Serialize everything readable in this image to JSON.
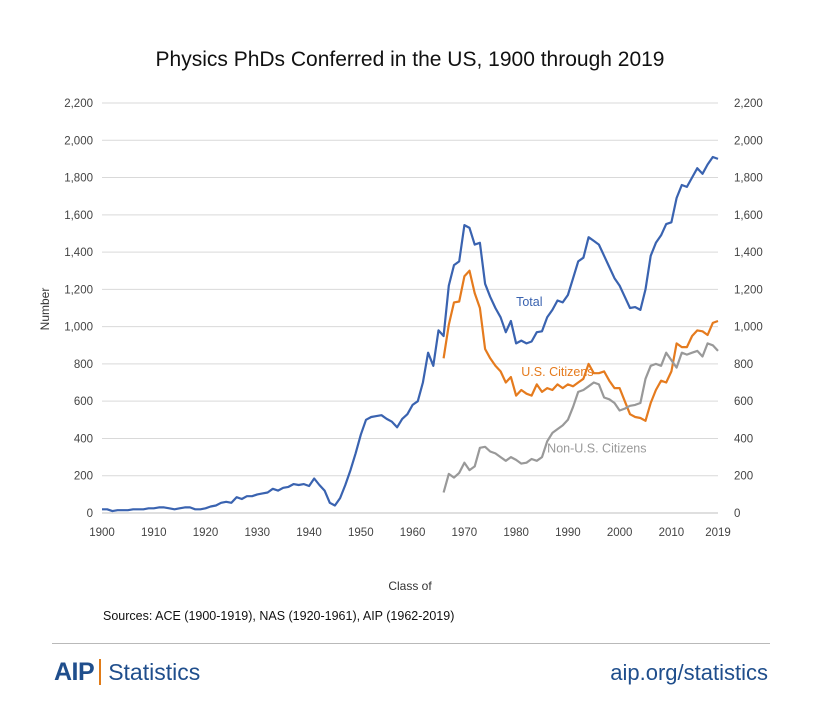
{
  "chart_data": {
    "type": "line",
    "title": "Physics PhDs Conferred in the US, 1900 through 2019",
    "xlabel": "Class of",
    "ylabel": "Number",
    "xlim": [
      1900,
      2019
    ],
    "ylim": [
      0,
      2200
    ],
    "x_ticks": [
      "1900",
      "1910",
      "1920",
      "1930",
      "1940",
      "1950",
      "1960",
      "1970",
      "1980",
      "1990",
      "2000",
      "2010",
      "2019"
    ],
    "y_ticks": [
      "0",
      "200",
      "400",
      "600",
      "800",
      "1,000",
      "1,200",
      "1,400",
      "1,600",
      "1,800",
      "2,000",
      "2,200"
    ],
    "grid": true,
    "series": [
      {
        "name": "Total",
        "color": "#3a63b0",
        "points": [
          [
            1900,
            20
          ],
          [
            1901,
            20
          ],
          [
            1902,
            10
          ],
          [
            1903,
            15
          ],
          [
            1904,
            15
          ],
          [
            1905,
            15
          ],
          [
            1906,
            20
          ],
          [
            1907,
            20
          ],
          [
            1908,
            20
          ],
          [
            1909,
            25
          ],
          [
            1910,
            25
          ],
          [
            1911,
            30
          ],
          [
            1912,
            30
          ],
          [
            1913,
            25
          ],
          [
            1914,
            20
          ],
          [
            1915,
            25
          ],
          [
            1916,
            30
          ],
          [
            1917,
            30
          ],
          [
            1918,
            20
          ],
          [
            1919,
            20
          ],
          [
            1920,
            25
          ],
          [
            1921,
            35
          ],
          [
            1922,
            40
          ],
          [
            1923,
            55
          ],
          [
            1924,
            60
          ],
          [
            1925,
            55
          ],
          [
            1926,
            85
          ],
          [
            1927,
            75
          ],
          [
            1928,
            90
          ],
          [
            1929,
            90
          ],
          [
            1930,
            100
          ],
          [
            1931,
            105
          ],
          [
            1932,
            110
          ],
          [
            1933,
            130
          ],
          [
            1934,
            120
          ],
          [
            1935,
            135
          ],
          [
            1936,
            140
          ],
          [
            1937,
            155
          ],
          [
            1938,
            150
          ],
          [
            1939,
            155
          ],
          [
            1940,
            145
          ],
          [
            1941,
            185
          ],
          [
            1942,
            150
          ],
          [
            1943,
            120
          ],
          [
            1944,
            55
          ],
          [
            1945,
            40
          ],
          [
            1946,
            80
          ],
          [
            1947,
            150
          ],
          [
            1948,
            230
          ],
          [
            1949,
            320
          ],
          [
            1950,
            420
          ],
          [
            1951,
            500
          ],
          [
            1952,
            515
          ],
          [
            1953,
            520
          ],
          [
            1954,
            525
          ],
          [
            1955,
            505
          ],
          [
            1956,
            490
          ],
          [
            1957,
            460
          ],
          [
            1958,
            505
          ],
          [
            1959,
            530
          ],
          [
            1960,
            580
          ],
          [
            1961,
            600
          ],
          [
            1962,
            700
          ],
          [
            1963,
            860
          ],
          [
            1964,
            790
          ],
          [
            1965,
            980
          ],
          [
            1966,
            950
          ],
          [
            1967,
            1220
          ],
          [
            1968,
            1330
          ],
          [
            1969,
            1350
          ],
          [
            1970,
            1545
          ],
          [
            1971,
            1530
          ],
          [
            1972,
            1440
          ],
          [
            1973,
            1450
          ],
          [
            1974,
            1230
          ],
          [
            1975,
            1160
          ],
          [
            1976,
            1100
          ],
          [
            1977,
            1050
          ],
          [
            1978,
            970
          ],
          [
            1979,
            1030
          ],
          [
            1980,
            910
          ],
          [
            1981,
            925
          ],
          [
            1982,
            910
          ],
          [
            1983,
            920
          ],
          [
            1984,
            970
          ],
          [
            1985,
            975
          ],
          [
            1986,
            1050
          ],
          [
            1987,
            1090
          ],
          [
            1988,
            1140
          ],
          [
            1989,
            1130
          ],
          [
            1990,
            1170
          ],
          [
            1991,
            1260
          ],
          [
            1992,
            1350
          ],
          [
            1993,
            1370
          ],
          [
            1994,
            1480
          ],
          [
            1995,
            1460
          ],
          [
            1996,
            1440
          ],
          [
            1997,
            1380
          ],
          [
            1998,
            1320
          ],
          [
            1999,
            1260
          ],
          [
            2000,
            1220
          ],
          [
            2001,
            1160
          ],
          [
            2002,
            1100
          ],
          [
            2003,
            1105
          ],
          [
            2004,
            1090
          ],
          [
            2005,
            1200
          ],
          [
            2006,
            1380
          ],
          [
            2007,
            1450
          ],
          [
            2008,
            1490
          ],
          [
            2009,
            1550
          ],
          [
            2010,
            1560
          ],
          [
            2011,
            1690
          ],
          [
            2012,
            1760
          ],
          [
            2013,
            1750
          ],
          [
            2014,
            1800
          ],
          [
            2015,
            1850
          ],
          [
            2016,
            1820
          ],
          [
            2017,
            1870
          ],
          [
            2018,
            1910
          ],
          [
            2019,
            1900
          ]
        ]
      },
      {
        "name": "U.S. Citizens",
        "color": "#e57b1e",
        "points": [
          [
            1966,
            830
          ],
          [
            1967,
            1010
          ],
          [
            1968,
            1130
          ],
          [
            1969,
            1135
          ],
          [
            1970,
            1270
          ],
          [
            1971,
            1300
          ],
          [
            1972,
            1180
          ],
          [
            1973,
            1100
          ],
          [
            1974,
            880
          ],
          [
            1975,
            830
          ],
          [
            1976,
            790
          ],
          [
            1977,
            760
          ],
          [
            1978,
            700
          ],
          [
            1979,
            730
          ],
          [
            1980,
            630
          ],
          [
            1981,
            660
          ],
          [
            1982,
            640
          ],
          [
            1983,
            630
          ],
          [
            1984,
            690
          ],
          [
            1985,
            650
          ],
          [
            1986,
            670
          ],
          [
            1987,
            660
          ],
          [
            1988,
            690
          ],
          [
            1989,
            670
          ],
          [
            1990,
            690
          ],
          [
            1991,
            680
          ],
          [
            1992,
            700
          ],
          [
            1993,
            720
          ],
          [
            1994,
            800
          ],
          [
            1995,
            750
          ],
          [
            1996,
            750
          ],
          [
            1997,
            760
          ],
          [
            1998,
            710
          ],
          [
            1999,
            670
          ],
          [
            2000,
            670
          ],
          [
            2001,
            600
          ],
          [
            2002,
            530
          ],
          [
            2003,
            515
          ],
          [
            2004,
            510
          ],
          [
            2005,
            495
          ],
          [
            2006,
            590
          ],
          [
            2007,
            660
          ],
          [
            2008,
            710
          ],
          [
            2009,
            700
          ],
          [
            2010,
            760
          ],
          [
            2011,
            910
          ],
          [
            2012,
            890
          ],
          [
            2013,
            890
          ],
          [
            2014,
            950
          ],
          [
            2015,
            980
          ],
          [
            2016,
            975
          ],
          [
            2017,
            955
          ],
          [
            2018,
            1020
          ],
          [
            2019,
            1030
          ]
        ]
      },
      {
        "name": "Non-U.S. Citizens",
        "color": "#999999",
        "points": [
          [
            1966,
            110
          ],
          [
            1967,
            210
          ],
          [
            1968,
            190
          ],
          [
            1969,
            215
          ],
          [
            1970,
            270
          ],
          [
            1971,
            230
          ],
          [
            1972,
            250
          ],
          [
            1973,
            350
          ],
          [
            1974,
            355
          ],
          [
            1975,
            330
          ],
          [
            1976,
            320
          ],
          [
            1977,
            300
          ],
          [
            1978,
            280
          ],
          [
            1979,
            300
          ],
          [
            1980,
            285
          ],
          [
            1981,
            265
          ],
          [
            1982,
            270
          ],
          [
            1983,
            290
          ],
          [
            1984,
            280
          ],
          [
            1985,
            300
          ],
          [
            1986,
            385
          ],
          [
            1987,
            430
          ],
          [
            1988,
            450
          ],
          [
            1989,
            470
          ],
          [
            1990,
            500
          ],
          [
            1991,
            570
          ],
          [
            1992,
            650
          ],
          [
            1993,
            660
          ],
          [
            1994,
            680
          ],
          [
            1995,
            700
          ],
          [
            1996,
            690
          ],
          [
            1997,
            620
          ],
          [
            1998,
            610
          ],
          [
            1999,
            590
          ],
          [
            2000,
            550
          ],
          [
            2001,
            560
          ],
          [
            2002,
            575
          ],
          [
            2003,
            580
          ],
          [
            2004,
            590
          ],
          [
            2005,
            720
          ],
          [
            2006,
            790
          ],
          [
            2007,
            800
          ],
          [
            2008,
            790
          ],
          [
            2009,
            860
          ],
          [
            2010,
            820
          ],
          [
            2011,
            780
          ],
          [
            2012,
            860
          ],
          [
            2013,
            850
          ],
          [
            2014,
            860
          ],
          [
            2015,
            870
          ],
          [
            2016,
            840
          ],
          [
            2017,
            910
          ],
          [
            2018,
            900
          ],
          [
            2019,
            870
          ]
        ]
      }
    ],
    "annotations": [
      {
        "text": "Total",
        "series": "Total"
      },
      {
        "text": "U.S. Citizens",
        "series": "U.S. Citizens"
      },
      {
        "text": "Non-U.S. Citizens",
        "series": "Non-U.S. Citizens"
      }
    ]
  },
  "source_note": "Sources: ACE (1900-1919), NAS (1920-1961), AIP (1962-2019)",
  "footer": {
    "logo_mark": "AIP",
    "logo_text": "Statistics",
    "url": "aip.org/statistics"
  }
}
